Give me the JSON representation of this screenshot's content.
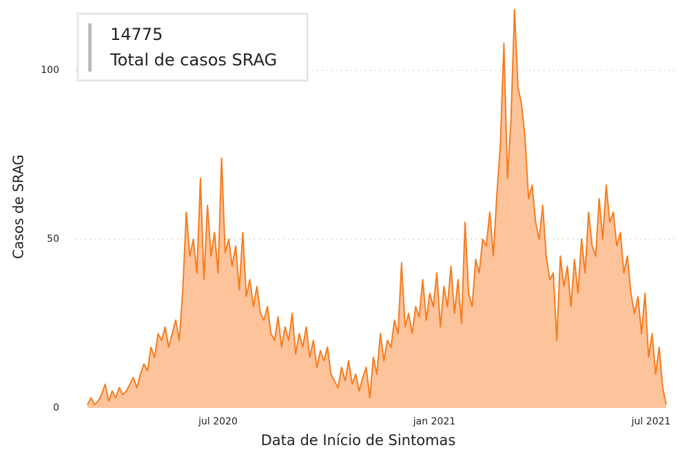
{
  "chart_data": {
    "type": "area",
    "kpi_value": "14775",
    "kpi_label": "Total de casos SRAG",
    "xlabel": "Data de Início de Sintomas",
    "ylabel": "Casos de SRAG",
    "color": "#f57c1f",
    "fill_color": "#fdc39a",
    "grid": true,
    "categories": [
      null,
      null,
      null,
      null,
      null,
      null,
      null,
      null,
      null,
      null,
      null,
      null,
      null,
      null,
      null,
      null,
      null,
      null,
      null,
      null,
      null,
      null,
      null,
      null,
      null,
      null,
      null,
      null,
      null,
      null,
      null,
      null,
      null,
      null,
      null,
      null,
      null,
      null,
      null,
      null,
      null,
      null,
      null,
      null,
      null,
      null,
      null,
      null,
      null,
      null,
      null,
      null,
      null,
      null,
      null,
      null,
      null,
      null,
      null,
      null,
      null,
      null,
      null,
      null,
      null,
      null,
      null,
      null,
      null,
      null,
      null,
      null,
      null,
      null,
      null,
      null,
      null,
      null,
      null,
      null,
      null,
      null,
      null,
      null,
      null,
      null,
      null,
      null,
      null,
      null,
      null,
      null,
      null,
      null,
      null,
      null,
      null,
      null,
      null,
      null,
      null,
      null,
      null,
      null,
      null,
      null,
      null,
      null,
      null,
      null,
      null,
      null,
      null,
      null,
      null,
      null,
      null,
      null,
      null,
      null,
      null,
      null,
      null,
      null,
      null,
      null,
      null,
      null,
      null,
      null,
      null,
      null,
      null,
      null,
      null,
      null,
      null,
      null,
      null,
      null,
      null,
      null,
      null,
      null,
      null,
      null,
      null,
      null,
      null,
      null,
      null,
      null,
      null,
      null,
      null,
      null,
      null,
      null,
      null,
      null,
      null,
      null,
      null,
      null,
      null
    ],
    "values": [
      1,
      3,
      1,
      2,
      4,
      7,
      2,
      5,
      3,
      6,
      4,
      5,
      7,
      9,
      6,
      10,
      13,
      11,
      18,
      15,
      22,
      20,
      24,
      18,
      22,
      26,
      20,
      35,
      58,
      45,
      50,
      40,
      68,
      38,
      60,
      45,
      52,
      40,
      74,
      46,
      50,
      42,
      48,
      35,
      52,
      33,
      38,
      30,
      36,
      28,
      26,
      30,
      22,
      20,
      27,
      18,
      24,
      20,
      28,
      16,
      22,
      18,
      24,
      15,
      20,
      12,
      17,
      14,
      18,
      10,
      8,
      6,
      12,
      8,
      14,
      7,
      10,
      5,
      9,
      12,
      3,
      15,
      10,
      22,
      14,
      20,
      18,
      26,
      22,
      43,
      24,
      28,
      22,
      30,
      27,
      38,
      26,
      34,
      30,
      40,
      24,
      36,
      30,
      42,
      28,
      38,
      25,
      55,
      34,
      30,
      44,
      40,
      50,
      48,
      58,
      45,
      63,
      78,
      108,
      68,
      85,
      118,
      95,
      90,
      80,
      62,
      66,
      55,
      50,
      60,
      45,
      38,
      40,
      20,
      45,
      36,
      42,
      30,
      44,
      34,
      50,
      40,
      58,
      48,
      45,
      62,
      50,
      66,
      55,
      58,
      48,
      52,
      40,
      45,
      34,
      28,
      33,
      22,
      34,
      15,
      22,
      10,
      18,
      6,
      1
    ],
    "xlim": [
      0,
      164
    ],
    "xticks": [
      {
        "value": 37,
        "label": "jul 2020"
      },
      {
        "value": 98.3,
        "label": "jan 2021"
      },
      {
        "value": 159.7,
        "label": "jul 2021"
      }
    ],
    "ylim": [
      0,
      118
    ],
    "yticks": [
      0,
      50,
      100
    ]
  }
}
